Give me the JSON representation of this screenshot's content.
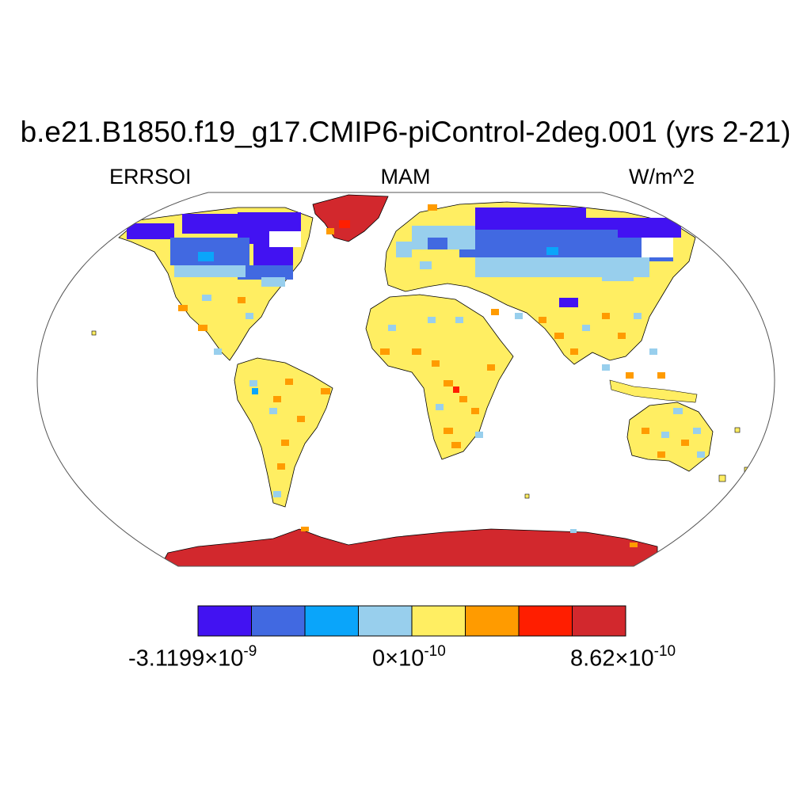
{
  "title": "b.e21.B1850.f19_g17.CMIP6-piControl-2deg.001 (yrs 2-21)",
  "subtitle_left": "ERRSOI",
  "subtitle_center": "MAM",
  "subtitle_right": "W/m^2",
  "projection": "Robinson",
  "colorbar": {
    "colors": [
      "#4212f2",
      "#4169e1",
      "#0aa5fa",
      "#98cfed",
      "#ffee62",
      "#ff9b00",
      "#ff1e00",
      "#d2282d"
    ],
    "labels": [
      {
        "mantissa": "-3.1199",
        "times": "×10",
        "exponent": "-9"
      },
      {
        "mantissa": "0",
        "times": "×10",
        "exponent": "-10"
      },
      {
        "mantissa": "8.62",
        "times": "×10",
        "exponent": "-10"
      }
    ]
  },
  "regions": [
    {
      "name": "Greenland",
      "category": 7
    },
    {
      "name": "Antarctica",
      "category": 7
    },
    {
      "name": "Northern Canada",
      "category": 0
    },
    {
      "name": "Northern Siberia",
      "category": 0
    },
    {
      "name": "Southern Canada",
      "category": 1
    },
    {
      "name": "Central Siberia",
      "category": 1
    },
    {
      "name": "Europe",
      "category": 3
    },
    {
      "name": "United States",
      "category": 4
    },
    {
      "name": "South America",
      "category": 4
    },
    {
      "name": "Africa",
      "category": 4
    },
    {
      "name": "Southern Asia",
      "category": 4
    },
    {
      "name": "Australia",
      "category": 4
    }
  ]
}
